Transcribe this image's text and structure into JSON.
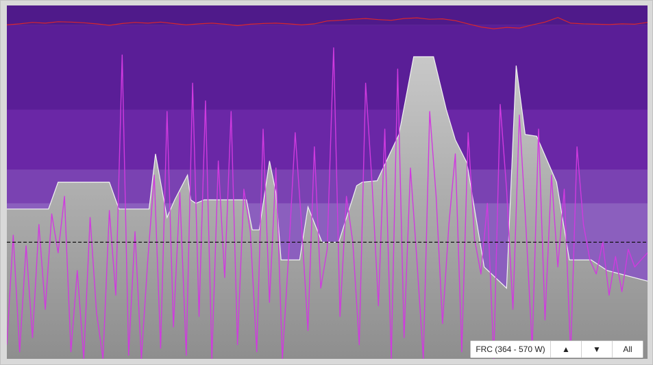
{
  "zone_controls": {
    "zone_label": "FRC (364 - 570 W)",
    "up_icon": "▲",
    "down_icon": "▼",
    "all_label": "All"
  },
  "colors": {
    "zone_1": "#4f1a8a",
    "zone_2": "#5a1e97",
    "zone_3": "#6a27a6",
    "zone_4": "#7a42b2",
    "zone_5": "#8b5fbe",
    "area_top": "#c8c8c8",
    "area_bottom": "#8e8e8e",
    "power_line": "#d03adf",
    "top_line": "#d8262e",
    "threshold": "#111111"
  },
  "chart_data": {
    "type": "area",
    "xlim": [
      0,
      1000
    ],
    "ylim": [
      0,
      1000
    ],
    "zone_bands": [
      {
        "from": 0,
        "to": 440
      },
      {
        "from": 440,
        "to": 535
      },
      {
        "from": 535,
        "to": 705
      },
      {
        "from": 705,
        "to": 945
      },
      {
        "from": 945,
        "to": 1000
      }
    ],
    "threshold_y": 330,
    "effort_area": {
      "x": [
        0,
        65,
        80,
        160,
        175,
        222,
        232,
        250,
        262,
        282,
        287,
        295,
        308,
        374,
        383,
        394,
        410,
        420,
        428,
        457,
        470,
        492,
        518,
        546,
        555,
        578,
        612,
        635,
        666,
        686,
        700,
        718,
        745,
        780,
        795,
        809,
        827,
        858,
        878,
        912,
        937,
        1000
      ],
      "y": [
        424,
        424,
        500,
        500,
        424,
        424,
        580,
        400,
        450,
        520,
        450,
        440,
        450,
        450,
        365,
        365,
        560,
        470,
        280,
        280,
        430,
        330,
        330,
        490,
        500,
        504,
        635,
        855,
        855,
        705,
        620,
        555,
        260,
        200,
        830,
        635,
        630,
        500,
        280,
        280,
        250,
        220
      ]
    },
    "power_series": {
      "x": [
        0,
        10,
        20,
        30,
        40,
        50,
        60,
        70,
        80,
        90,
        100,
        110,
        120,
        130,
        140,
        150,
        160,
        170,
        180,
        190,
        200,
        210,
        220,
        230,
        240,
        250,
        260,
        270,
        280,
        290,
        300,
        310,
        320,
        330,
        340,
        350,
        360,
        370,
        380,
        390,
        400,
        410,
        420,
        430,
        440,
        450,
        460,
        470,
        480,
        490,
        500,
        510,
        520,
        530,
        540,
        550,
        560,
        570,
        580,
        590,
        600,
        610,
        620,
        630,
        640,
        650,
        660,
        670,
        680,
        690,
        700,
        710,
        720,
        730,
        740,
        750,
        760,
        770,
        780,
        790,
        800,
        810,
        820,
        830,
        840,
        850,
        860,
        870,
        880,
        890,
        900,
        910,
        920,
        930,
        940,
        950,
        960,
        970,
        980,
        990,
        1000
      ],
      "y": [
        40,
        350,
        20,
        320,
        60,
        380,
        140,
        410,
        300,
        460,
        20,
        250,
        0,
        400,
        130,
        0,
        420,
        180,
        860,
        10,
        360,
        0,
        280,
        520,
        30,
        700,
        90,
        470,
        10,
        780,
        120,
        730,
        0,
        560,
        230,
        700,
        40,
        480,
        360,
        20,
        650,
        160,
        540,
        0,
        300,
        640,
        380,
        80,
        600,
        200,
        310,
        880,
        120,
        460,
        330,
        40,
        780,
        500,
        150,
        650,
        0,
        820,
        60,
        540,
        280,
        0,
        700,
        460,
        100,
        380,
        580,
        20,
        640,
        340,
        240,
        440,
        0,
        720,
        480,
        140,
        690,
        380,
        30,
        650,
        110,
        520,
        260,
        480,
        10,
        600,
        380,
        280,
        240,
        330,
        180,
        290,
        190,
        310,
        260,
        280,
        300
      ]
    },
    "top_line": {
      "x": [
        0,
        20,
        40,
        60,
        80,
        100,
        120,
        140,
        160,
        180,
        200,
        220,
        240,
        260,
        280,
        300,
        320,
        340,
        360,
        380,
        400,
        420,
        440,
        460,
        480,
        500,
        520,
        540,
        560,
        580,
        600,
        620,
        640,
        660,
        680,
        700,
        720,
        740,
        760,
        780,
        800,
        820,
        840,
        860,
        880,
        900,
        920,
        940,
        960,
        980,
        1000
      ],
      "y": [
        945,
        948,
        952,
        950,
        954,
        953,
        951,
        948,
        944,
        949,
        952,
        950,
        953,
        949,
        945,
        948,
        950,
        947,
        943,
        947,
        949,
        950,
        948,
        945,
        948,
        956,
        958,
        961,
        963,
        960,
        958,
        963,
        965,
        961,
        962,
        957,
        948,
        939,
        934,
        938,
        936,
        945,
        953,
        966,
        950,
        948,
        947,
        946,
        948,
        947,
        952
      ]
    }
  }
}
